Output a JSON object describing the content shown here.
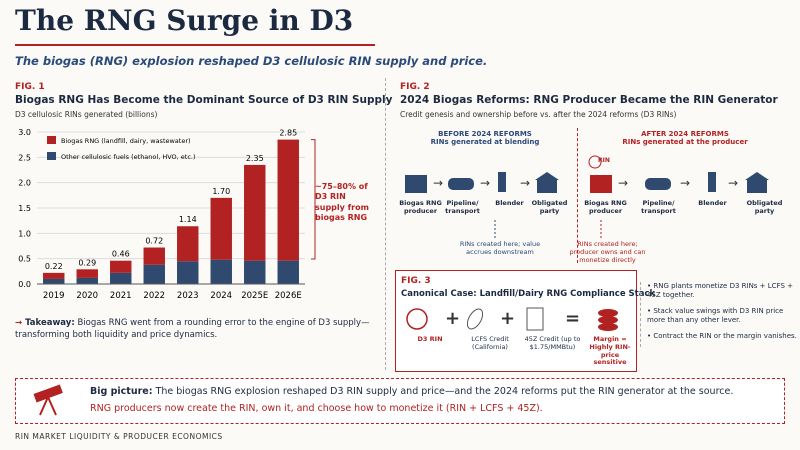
{
  "header": {
    "title": "The RNG Surge in D3",
    "subtitle": "The biogas (RNG) explosion reshaped D3 cellulosic RIN supply and price."
  },
  "fig1": {
    "label": "FIG. 1",
    "takeaway_label": "Takeaway:",
    "takeaway": "Biogas RNG went from a rounding error to the engine of D3 supply—transforming both liquidity and price dynamics."
  },
  "chart_data": {
    "type": "stacked-bar",
    "title": "Biogas RNG Has Become the Dominant Source of D3 RIN Supply",
    "subtitle": "D3 cellulosic RINs generated (billions)",
    "categories": [
      "2019",
      "2020",
      "2021",
      "2022",
      "2023",
      "2024",
      "2025E",
      "2026E"
    ],
    "series": [
      {
        "name": "Other cellulosic fuels (ethanol, HVO, etc.)",
        "color": "#2f4a6e",
        "values": [
          0.1,
          0.12,
          0.22,
          0.38,
          0.45,
          0.48,
          0.46,
          0.46
        ]
      },
      {
        "name": "Biogas RNG (landfill, dairy, wastewater)",
        "color": "#b22222",
        "values": [
          0.12,
          0.17,
          0.24,
          0.34,
          0.69,
          1.22,
          1.89,
          2.39
        ]
      }
    ],
    "totals": [
      0.22,
      0.29,
      0.46,
      0.72,
      1.14,
      1.7,
      2.35,
      2.85
    ],
    "total_labels": [
      "0.22",
      "0.29",
      "0.46",
      "0.72",
      "1.14",
      "1.70",
      "2.35",
      "2.85"
    ],
    "ylim": [
      0,
      3.0
    ],
    "yticks": [
      {
        "value": 0,
        "label": "0.0"
      },
      {
        "value": 0.5,
        "label": "0.5"
      },
      {
        "value": 1,
        "label": "1.0"
      },
      {
        "value": 1.5,
        "label": "1.5"
      },
      {
        "value": 2,
        "label": "2.0"
      },
      {
        "value": 2.5,
        "label": "2.5"
      },
      {
        "value": 3,
        "label": "3.0"
      }
    ],
    "grid": true,
    "annotation": "~75–80% of D3 RIN supply from biogas RNG"
  },
  "fig2": {
    "label": "FIG. 2",
    "title": "2024 Biogas Reforms: RNG Producer Became the RIN Generator",
    "subtitle": "Credit genesis and ownership before vs. after the 2024 reforms (D3 RINs)",
    "before": {
      "heading": "BEFORE 2024 REFORMS",
      "sub": "RINs generated at blending",
      "nodes": [
        "Biogas RNG producer",
        "Pipeline/ transport",
        "Blender",
        "Obligated party"
      ],
      "note": "RINs created here; value accrues downstream"
    },
    "after": {
      "heading": "AFTER 2024 REFORMS",
      "sub": "RINs generated at the producer",
      "badge": "RIN",
      "nodes": [
        "Biogas RNG producer",
        "Pipeline/ transport",
        "Blender",
        "Obligated party"
      ],
      "note": "RINs created here; producer owns and can monetize directly"
    }
  },
  "fig3": {
    "label": "FIG. 3",
    "title": "Canonical Case: Landfill/Dairy RNG Compliance Stack",
    "items": [
      "D3 RIN",
      "LCFS Credit (California)",
      "45Z Credit (up to $1.75/MMBtu)",
      "Margin = Highly RIN-price sensitive"
    ],
    "operators": [
      "+",
      "+",
      "="
    ],
    "bullets": [
      "RNG plants monetize D3 RINs + LCFS + 45Z together.",
      "Stack value swings with D3 RIN price more than any other lever.",
      "Contract the RIN or the margin vanishes."
    ]
  },
  "big_picture": {
    "label": "Big picture:",
    "text": "The biogas RNG explosion reshaped D3 RIN supply and price—and the 2024 reforms put the RIN generator at the source.",
    "text2": "RNG producers now create the RIN, own it, and choose how to monetize it (RIN + LCFS + 45Z)."
  },
  "footer": "RIN MARKET LIQUIDITY & PRODUCER ECONOMICS"
}
